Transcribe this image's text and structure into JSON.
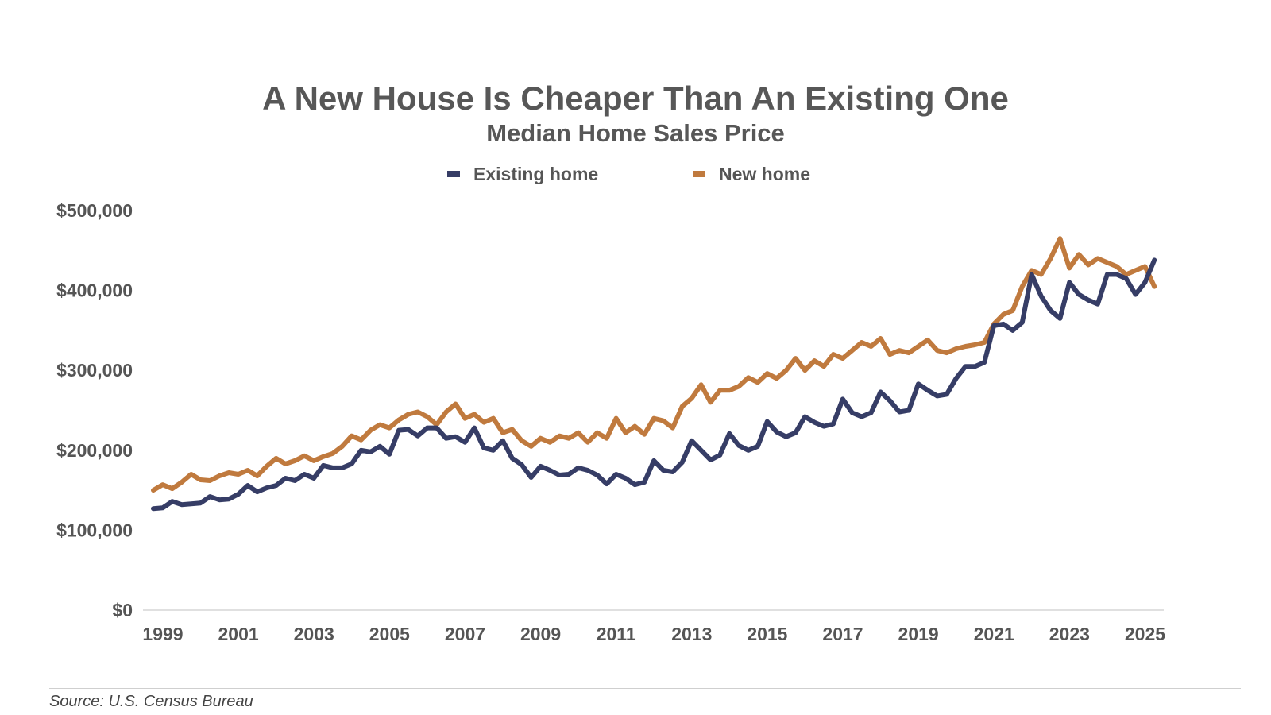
{
  "chart_data": {
    "type": "line",
    "title": "A New House Is Cheaper Than An Existing One",
    "subtitle": "Median Home Sales Price",
    "source": "Source: U.S. Census Bureau",
    "xlim": [
      1999,
      2025.6
    ],
    "ylim": [
      0,
      500000
    ],
    "x_ticks": [
      1999,
      2001,
      2003,
      2005,
      2007,
      2009,
      2011,
      2013,
      2015,
      2017,
      2019,
      2021,
      2023,
      2025
    ],
    "x_tick_labels": [
      "1999",
      "2001",
      "2003",
      "2005",
      "2007",
      "2009",
      "2011",
      "2013",
      "2015",
      "2017",
      "2019",
      "2021",
      "2023",
      "2025"
    ],
    "y_ticks": [
      0,
      100000,
      200000,
      300000,
      400000,
      500000
    ],
    "y_tick_labels": [
      "$0",
      "$100,000",
      "$200,000",
      "$300,000",
      "$400,000",
      "$500,000"
    ],
    "legend_position": "top-center",
    "series": [
      {
        "name": "Existing home",
        "color": "#363d66",
        "x": [
          1999,
          1999.25,
          1999.5,
          1999.75,
          2000,
          2000.25,
          2000.5,
          2000.75,
          2001,
          2001.25,
          2001.5,
          2001.75,
          2002,
          2002.25,
          2002.5,
          2002.75,
          2003,
          2003.25,
          2003.5,
          2003.75,
          2004,
          2004.25,
          2004.5,
          2004.75,
          2005,
          2005.25,
          2005.5,
          2005.75,
          2006,
          2006.25,
          2006.5,
          2006.75,
          2007,
          2007.25,
          2007.5,
          2007.75,
          2008,
          2008.25,
          2008.5,
          2008.75,
          2009,
          2009.25,
          2009.5,
          2009.75,
          2010,
          2010.25,
          2010.5,
          2010.75,
          2011,
          2011.25,
          2011.5,
          2011.75,
          2012,
          2012.25,
          2012.5,
          2012.75,
          2013,
          2013.25,
          2013.5,
          2013.75,
          2014,
          2014.25,
          2014.5,
          2014.75,
          2015,
          2015.25,
          2015.5,
          2015.75,
          2016,
          2016.25,
          2016.5,
          2016.75,
          2017,
          2017.25,
          2017.5,
          2017.75,
          2018,
          2018.25,
          2018.5,
          2018.75,
          2019,
          2019.25,
          2019.5,
          2019.75,
          2020,
          2020.25,
          2020.5,
          2020.75,
          2021,
          2021.25,
          2021.5,
          2021.75,
          2022,
          2022.25,
          2022.5,
          2022.75,
          2023,
          2023.25,
          2023.5,
          2023.75,
          2024,
          2024.25,
          2024.5,
          2024.75,
          2025,
          2025.25,
          2025.5
        ],
        "values": [
          127000,
          128000,
          136000,
          132000,
          133000,
          134000,
          142000,
          138000,
          139000,
          145000,
          156000,
          148000,
          153000,
          156000,
          165000,
          162000,
          170000,
          165000,
          181000,
          178000,
          178000,
          183000,
          200000,
          198000,
          205000,
          195000,
          225000,
          226000,
          218000,
          228000,
          228000,
          215000,
          217000,
          210000,
          228000,
          203000,
          200000,
          212000,
          190000,
          182000,
          166000,
          180000,
          175000,
          169000,
          170000,
          178000,
          175000,
          169000,
          158000,
          170000,
          165000,
          157000,
          160000,
          187000,
          175000,
          173000,
          185000,
          212000,
          200000,
          188000,
          194000,
          221000,
          206000,
          200000,
          205000,
          236000,
          223000,
          217000,
          222000,
          242000,
          235000,
          230000,
          233000,
          264000,
          247000,
          242000,
          247000,
          273000,
          262000,
          248000,
          250000,
          283000,
          275000,
          268000,
          270000,
          290000,
          305000,
          305000,
          310000,
          356000,
          358000,
          350000,
          360000,
          420000,
          393000,
          375000,
          365000,
          410000,
          395000,
          388000,
          383000,
          420000,
          420000,
          415000,
          395000,
          410000,
          438000
        ]
      },
      {
        "name": "New home",
        "color": "#c07a3e",
        "x": [
          1999,
          1999.25,
          1999.5,
          1999.75,
          2000,
          2000.25,
          2000.5,
          2000.75,
          2001,
          2001.25,
          2001.5,
          2001.75,
          2002,
          2002.25,
          2002.5,
          2002.75,
          2003,
          2003.25,
          2003.5,
          2003.75,
          2004,
          2004.25,
          2004.5,
          2004.75,
          2005,
          2005.25,
          2005.5,
          2005.75,
          2006,
          2006.25,
          2006.5,
          2006.75,
          2007,
          2007.25,
          2007.5,
          2007.75,
          2008,
          2008.25,
          2008.5,
          2008.75,
          2009,
          2009.25,
          2009.5,
          2009.75,
          2010,
          2010.25,
          2010.5,
          2010.75,
          2011,
          2011.25,
          2011.5,
          2011.75,
          2012,
          2012.25,
          2012.5,
          2012.75,
          2013,
          2013.25,
          2013.5,
          2013.75,
          2014,
          2014.25,
          2014.5,
          2014.75,
          2015,
          2015.25,
          2015.5,
          2015.75,
          2016,
          2016.25,
          2016.5,
          2016.75,
          2017,
          2017.25,
          2017.5,
          2017.75,
          2018,
          2018.25,
          2018.5,
          2018.75,
          2019,
          2019.25,
          2019.5,
          2019.75,
          2020,
          2020.25,
          2020.5,
          2020.75,
          2021,
          2021.25,
          2021.5,
          2021.75,
          2022,
          2022.25,
          2022.5,
          2022.75,
          2023,
          2023.25,
          2023.5,
          2023.75,
          2024,
          2024.25,
          2024.5,
          2024.75,
          2025,
          2025.25,
          2025.5
        ],
        "values": [
          150000,
          157000,
          152000,
          160000,
          170000,
          163000,
          162000,
          168000,
          172000,
          170000,
          175000,
          168000,
          180000,
          190000,
          183000,
          187000,
          193000,
          187000,
          192000,
          196000,
          205000,
          218000,
          213000,
          225000,
          232000,
          228000,
          238000,
          245000,
          248000,
          242000,
          232000,
          248000,
          258000,
          240000,
          245000,
          235000,
          240000,
          222000,
          226000,
          212000,
          205000,
          215000,
          210000,
          218000,
          215000,
          222000,
          210000,
          222000,
          215000,
          240000,
          222000,
          230000,
          220000,
          240000,
          237000,
          228000,
          255000,
          265000,
          282000,
          260000,
          275000,
          275000,
          280000,
          291000,
          285000,
          296000,
          290000,
          300000,
          315000,
          300000,
          312000,
          305000,
          320000,
          315000,
          325000,
          335000,
          330000,
          340000,
          320000,
          325000,
          322000,
          330000,
          338000,
          325000,
          322000,
          327000,
          330000,
          332000,
          335000,
          358000,
          370000,
          375000,
          405000,
          425000,
          420000,
          440000,
          465000,
          428000,
          445000,
          432000,
          440000,
          435000,
          430000,
          420000,
          425000,
          430000,
          405000
        ]
      }
    ]
  }
}
